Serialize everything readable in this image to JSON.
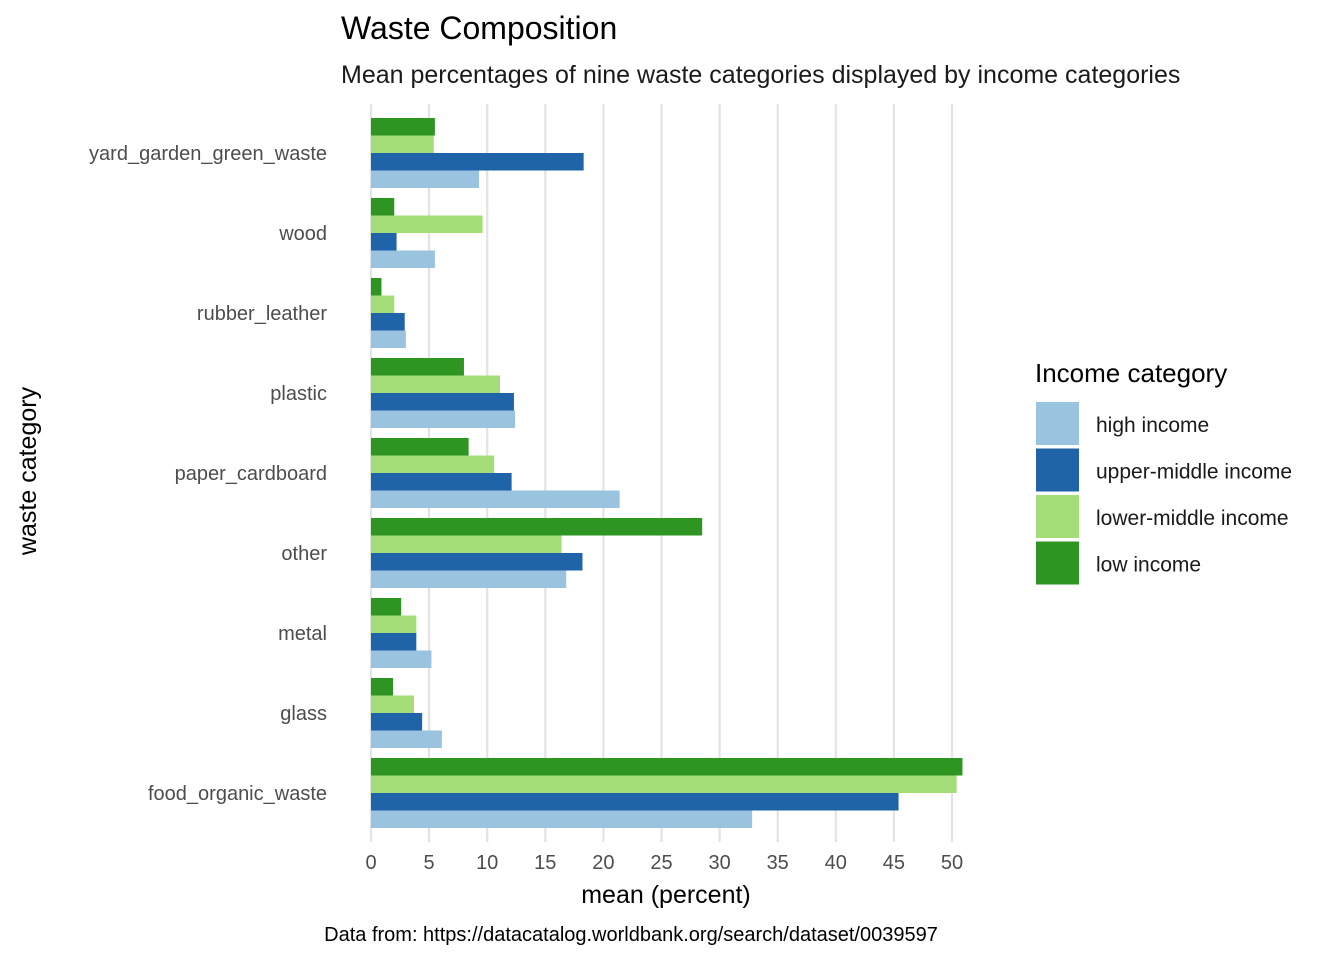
{
  "chart_data": {
    "type": "bar",
    "orientation": "horizontal",
    "title": "Waste Composition",
    "subtitle": "Mean percentages of nine waste categories displayed by income categories",
    "xlabel": "mean (percent)",
    "ylabel": "waste category",
    "caption": "Data from: https://datacatalog.worldbank.org/search/dataset/0039597",
    "xlim": [
      0,
      52
    ],
    "xticks": [
      0,
      5,
      10,
      15,
      20,
      25,
      30,
      35,
      40,
      45,
      50
    ],
    "grid": "vertical major lines",
    "legend_title": "Income category",
    "legend_position": "right",
    "categories": [
      "yard_garden_green_waste",
      "wood",
      "rubber_leather",
      "plastic",
      "paper_cardboard",
      "other",
      "metal",
      "glass",
      "food_organic_waste"
    ],
    "series": [
      {
        "name": "high income",
        "color": "#9ac3df",
        "values": [
          9.3,
          5.5,
          3.0,
          12.4,
          21.4,
          16.8,
          5.2,
          6.1,
          32.8
        ]
      },
      {
        "name": "upper-middle income",
        "color": "#1f63a8",
        "values": [
          18.3,
          2.2,
          2.9,
          12.3,
          12.1,
          18.2,
          3.9,
          4.4,
          45.4
        ]
      },
      {
        "name": "lower-middle income",
        "color": "#a4dc78",
        "values": [
          5.4,
          9.6,
          2.0,
          11.1,
          10.6,
          16.4,
          3.9,
          3.7,
          50.4
        ]
      },
      {
        "name": "low income",
        "color": "#2e9522",
        "values": [
          5.5,
          2.0,
          0.9,
          8.0,
          8.4,
          28.5,
          2.6,
          1.9,
          50.9
        ]
      }
    ]
  }
}
